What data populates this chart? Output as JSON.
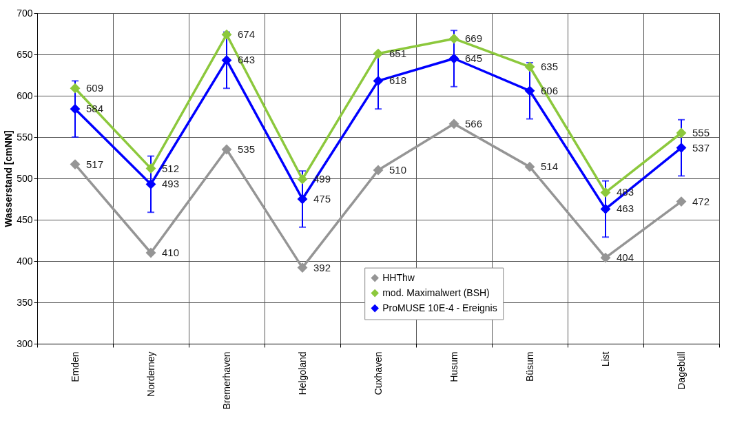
{
  "chart_data": {
    "type": "line",
    "ylabel": "Wasserstand [cmNN]",
    "categories": [
      "Emden",
      "Norderney",
      "Bremerhaven",
      "Helgoland",
      "Cuxhaven",
      "Husum",
      "Büsum",
      "List",
      "Dagebüll"
    ],
    "series": [
      {
        "name": "HHThw",
        "color": "#959595",
        "values": [
          517,
          410,
          535,
          392,
          510,
          566,
          514,
          404,
          472
        ]
      },
      {
        "name": "mod. Maximalwert (BSH)",
        "color": "#8cc83c",
        "values": [
          609,
          512,
          674,
          499,
          651,
          669,
          635,
          483,
          555
        ]
      },
      {
        "name": "ProMUSE 10E-4 - Ereignis",
        "color": "#0000ff",
        "values": [
          584,
          493,
          643,
          475,
          618,
          645,
          606,
          463,
          537
        ],
        "errors": [
          34,
          34,
          34,
          34,
          34,
          34,
          34,
          34,
          34
        ]
      }
    ],
    "ylim": [
      300,
      700
    ],
    "yticks": [
      300,
      350,
      400,
      450,
      500,
      550,
      600,
      650,
      700
    ],
    "grid": true,
    "legend": "bottom",
    "marker": "diamond",
    "line_style": "solid",
    "data_labels": true
  }
}
